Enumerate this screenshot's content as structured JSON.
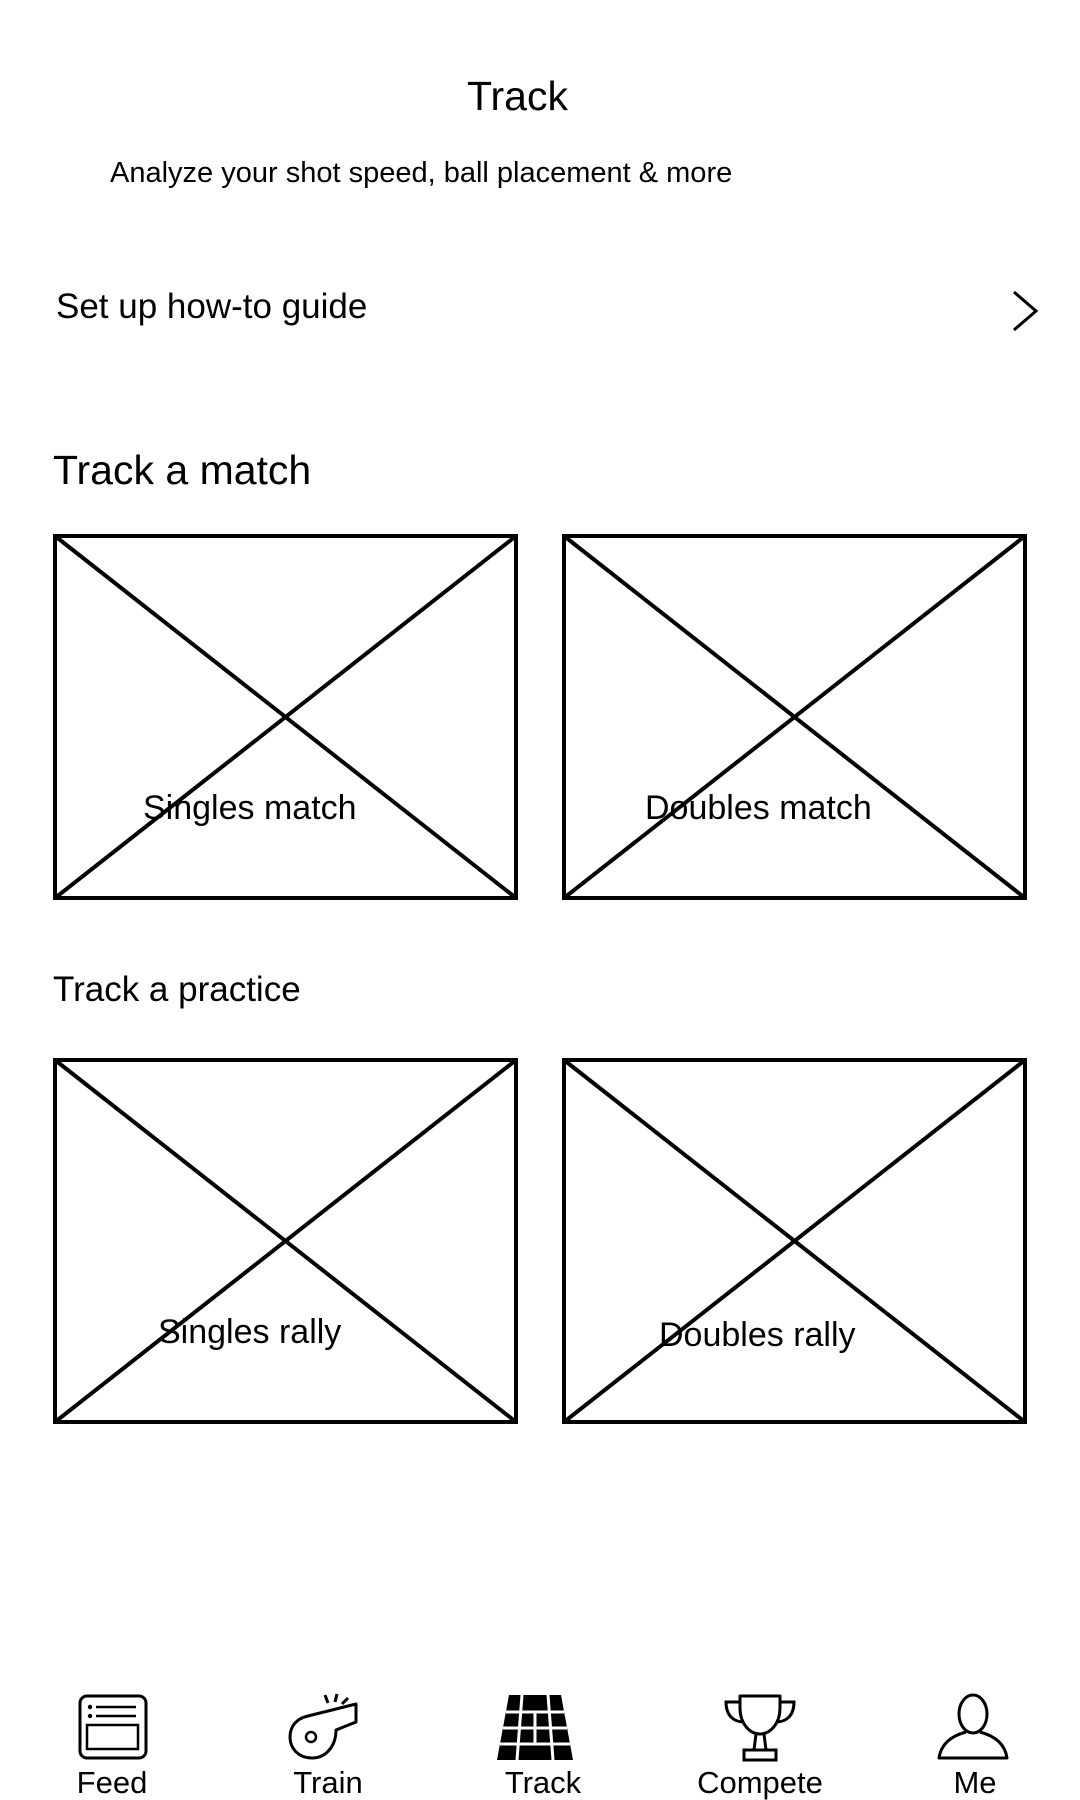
{
  "header": {
    "title": "Track",
    "subtitle": "Analyze your shot speed, ball placement & more"
  },
  "guide": {
    "label": "Set up how-to guide",
    "icon": "chevron-right-icon"
  },
  "match_section": {
    "title": "Track a match",
    "tiles": [
      {
        "label": "Singles match"
      },
      {
        "label": "Doubles match"
      }
    ]
  },
  "practice_section": {
    "title": "Track a practice",
    "tiles": [
      {
        "label": "Singles rally"
      },
      {
        "label": "Doubles rally"
      }
    ]
  },
  "bottom_nav": {
    "active": "Track",
    "items": [
      {
        "label": "Feed",
        "icon": "feed-icon"
      },
      {
        "label": "Train",
        "icon": "whistle-icon"
      },
      {
        "label": "Track",
        "icon": "court-icon"
      },
      {
        "label": "Compete",
        "icon": "trophy-icon"
      },
      {
        "label": "Me",
        "icon": "person-icon"
      }
    ]
  }
}
